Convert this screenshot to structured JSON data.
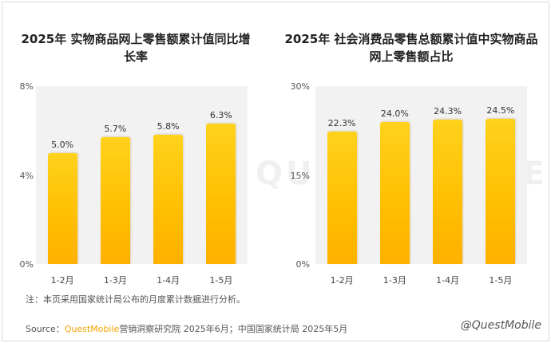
{
  "charts": [
    {
      "title": "2025年 实物商品网上零售额累计值同比增长率",
      "y_ticks": [
        "8%",
        "4%",
        "0%"
      ]
    },
    {
      "title": "2025年 社会消费品零售总额累计值中实物商品网上零售额占比",
      "y_ticks": [
        "30%",
        "15%",
        "0%"
      ]
    }
  ],
  "chart_data": [
    {
      "type": "bar",
      "title": "2025年 实物商品网上零售额累计值同比增长率",
      "categories": [
        "1-2月",
        "1-3月",
        "1-4月",
        "1-5月"
      ],
      "values": [
        5.0,
        5.7,
        5.8,
        6.3
      ],
      "labels": [
        "5.0%",
        "5.7%",
        "5.8%",
        "6.3%"
      ],
      "ylim": [
        0,
        8
      ],
      "yunit": "%",
      "color": "#FFC000"
    },
    {
      "type": "bar",
      "title": "2025年 社会消费品零售总额累计值中实物商品网上零售额占比",
      "categories": [
        "1-2月",
        "1-3月",
        "1-4月",
        "1-5月"
      ],
      "values": [
        22.3,
        24.0,
        24.3,
        24.5
      ],
      "labels": [
        "22.3%",
        "24.0%",
        "24.3%",
        "24.5%"
      ],
      "ylim": [
        0,
        30
      ],
      "yunit": "%",
      "color": "#FFC000"
    }
  ],
  "note": "注：本页采用国家统计局公布的月度累计数据进行分析。",
  "source": {
    "prefix": "Source：",
    "brand": "QuestMobile",
    "rest": "营销洞察研究院 2025年6月；中国国家统计局 2025年5月"
  },
  "watermark": "@QuestMobile",
  "background_watermark": "QUESTMOBILE"
}
